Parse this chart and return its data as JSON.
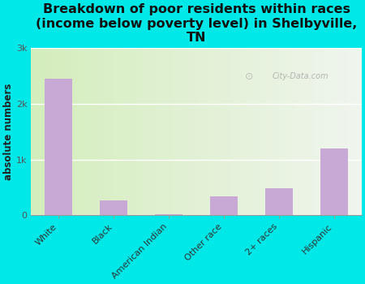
{
  "categories": [
    "White",
    "Black",
    "American Indian",
    "Other race",
    "2+ races",
    "Hispanic"
  ],
  "values": [
    2450,
    270,
    10,
    330,
    490,
    1200
  ],
  "bar_color": "#c8a8d4",
  "background_color": "#00e8e8",
  "plot_bg_left": "#d4edbc",
  "plot_bg_right": "#f0f5ee",
  "title": "Breakdown of poor residents within races\n(income below poverty level) in Shelbyville,\nTN",
  "ylabel": "absolute numbers",
  "ylim": [
    0,
    3000
  ],
  "yticks": [
    0,
    1000,
    2000,
    3000
  ],
  "ytick_labels": [
    "0",
    "1k",
    "2k",
    "3k"
  ],
  "watermark": "City-Data.com",
  "title_fontsize": 11.5,
  "label_fontsize": 8.5,
  "tick_fontsize": 8,
  "bar_width": 0.5
}
